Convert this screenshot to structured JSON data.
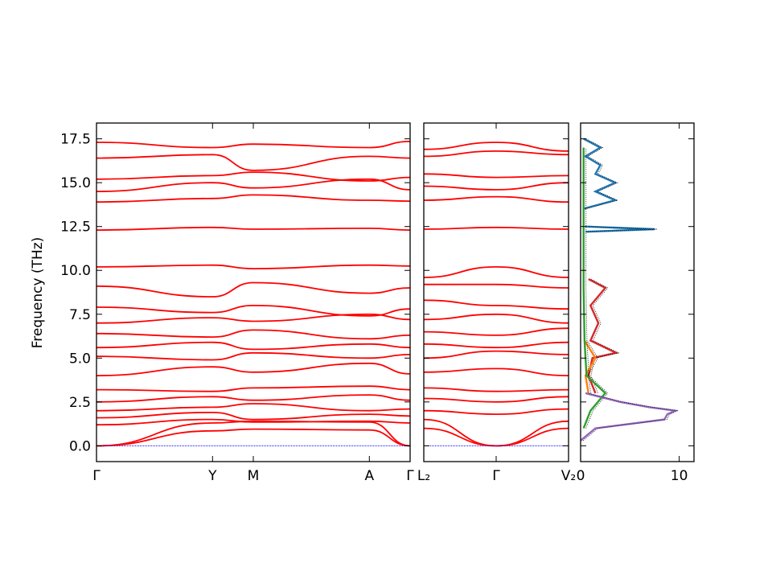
{
  "chart_data": [
    {
      "type": "line",
      "panel": "band-structure-main",
      "xlabel": "",
      "ylabel": "Frequency (THz)",
      "ylim": [
        -0.9,
        18.4
      ],
      "yticks": [
        "0.0",
        "2.5",
        "5.0",
        "7.5",
        "10.0",
        "12.5",
        "15.0",
        "17.5"
      ],
      "xtick_labels": [
        "Γ",
        "Y",
        "M",
        "A",
        "Γ"
      ],
      "x": [
        0,
        0.37,
        0.5,
        0.87,
        1.0
      ],
      "line_color": "#ff0000",
      "zero_line_color": "#0000ff",
      "grid": false,
      "series_note_count": 48,
      "representative_series": [
        {
          "values": [
            0.0,
            0.85,
            0.95,
            0.9,
            0.0
          ]
        },
        {
          "values": [
            0.0,
            1.3,
            1.4,
            1.35,
            0.0
          ]
        },
        {
          "values": [
            1.2,
            1.5,
            1.35,
            1.4,
            1.3
          ]
        },
        {
          "values": [
            1.6,
            1.9,
            1.5,
            1.8,
            1.7
          ]
        },
        {
          "values": [
            2.0,
            2.2,
            2.4,
            2.0,
            2.1
          ]
        },
        {
          "values": [
            2.5,
            2.8,
            2.6,
            2.9,
            2.6
          ]
        },
        {
          "values": [
            3.2,
            3.1,
            3.3,
            3.4,
            3.2
          ]
        },
        {
          "values": [
            4.0,
            4.5,
            4.2,
            4.7,
            4.1
          ]
        },
        {
          "values": [
            5.1,
            4.9,
            5.3,
            5.0,
            5.2
          ]
        },
        {
          "values": [
            5.6,
            5.9,
            5.5,
            5.8,
            5.6
          ]
        },
        {
          "values": [
            6.4,
            6.2,
            6.6,
            6.1,
            6.3
          ]
        },
        {
          "values": [
            7.0,
            7.3,
            7.1,
            7.5,
            7.2
          ]
        },
        {
          "values": [
            7.9,
            7.6,
            8.0,
            7.4,
            7.8
          ]
        },
        {
          "values": [
            9.1,
            8.5,
            9.3,
            8.7,
            9.0
          ]
        },
        {
          "values": [
            10.2,
            10.3,
            10.1,
            10.3,
            10.25
          ]
        },
        {
          "values": [
            12.3,
            12.45,
            12.35,
            12.4,
            12.3
          ]
        },
        {
          "values": [
            13.9,
            14.1,
            14.3,
            14.0,
            13.95
          ]
        },
        {
          "values": [
            14.5,
            15.0,
            14.7,
            15.2,
            14.6
          ]
        },
        {
          "values": [
            15.2,
            15.4,
            15.6,
            15.1,
            15.3
          ]
        },
        {
          "values": [
            16.4,
            16.6,
            15.7,
            16.5,
            16.4
          ]
        },
        {
          "values": [
            17.3,
            17.0,
            17.2,
            17.0,
            17.35
          ]
        }
      ]
    },
    {
      "type": "line",
      "panel": "band-structure-secondary",
      "xtick_labels": [
        "L₂",
        "Γ",
        "V₂"
      ],
      "x": [
        0,
        0.5,
        1.0
      ],
      "ylim": [
        -0.9,
        18.4
      ],
      "line_color": "#ff0000",
      "representative_series": [
        {
          "values": [
            1.0,
            0.0,
            1.0
          ]
        },
        {
          "values": [
            1.5,
            0.0,
            1.4
          ]
        },
        {
          "values": [
            2.0,
            1.8,
            2.1
          ]
        },
        {
          "values": [
            2.7,
            2.5,
            2.8
          ]
        },
        {
          "values": [
            3.3,
            3.1,
            3.2
          ]
        },
        {
          "values": [
            4.2,
            4.4,
            4.0
          ]
        },
        {
          "values": [
            5.0,
            5.4,
            5.2
          ]
        },
        {
          "values": [
            5.8,
            5.6,
            5.9
          ]
        },
        {
          "values": [
            6.5,
            6.3,
            6.7
          ]
        },
        {
          "values": [
            7.2,
            7.5,
            7.0
          ]
        },
        {
          "values": [
            8.3,
            8.0,
            7.8
          ]
        },
        {
          "values": [
            9.2,
            9.2,
            9.0
          ]
        },
        {
          "values": [
            9.6,
            10.2,
            9.6
          ]
        },
        {
          "values": [
            12.35,
            12.45,
            12.35
          ]
        },
        {
          "values": [
            14.0,
            14.2,
            13.9
          ]
        },
        {
          "values": [
            14.8,
            14.6,
            15.0
          ]
        },
        {
          "values": [
            15.5,
            15.3,
            15.4
          ]
        },
        {
          "values": [
            16.5,
            16.8,
            16.6
          ]
        },
        {
          "values": [
            16.9,
            17.3,
            16.8
          ]
        }
      ]
    },
    {
      "type": "line",
      "panel": "dos",
      "xticks": [
        "0",
        "10"
      ],
      "xlim": [
        0,
        11.5
      ],
      "ylim": [
        -0.9,
        18.4
      ],
      "total_color": "#000000",
      "series": [
        {
          "color": "#1f77b4",
          "y": [
            13.5,
            14.0,
            14.5,
            15.0,
            15.5,
            16.0,
            16.5,
            17.0,
            17.5
          ],
          "values": [
            0.2,
            3.5,
            1.5,
            3.5,
            1.5,
            2.0,
            0.5,
            2.0,
            0.3
          ]
        },
        {
          "color": "#1f77b4",
          "y": [
            12.2,
            12.35,
            12.5
          ],
          "values": [
            0.5,
            7.5,
            0.5
          ]
        },
        {
          "color": "#d62728",
          "y": [
            9.5,
            9.0,
            8.0,
            7.0,
            6.0,
            5.3,
            5.0,
            4.0,
            3.0
          ],
          "values": [
            0.8,
            2.5,
            1.0,
            1.8,
            1.0,
            3.6,
            1.2,
            0.8,
            1.5
          ]
        },
        {
          "color": "#ff7f0e",
          "y": [
            3.0,
            4.0,
            5.0,
            6.0
          ],
          "values": [
            0.8,
            0.5,
            1.5,
            0.4
          ]
        },
        {
          "color": "#2ca02c",
          "y": [
            1.0,
            2.0,
            3.0,
            4.0,
            5.0,
            6.0,
            9.0,
            17.0
          ],
          "values": [
            0.3,
            1.0,
            2.5,
            0.6,
            0.5,
            0.4,
            0.3,
            0.3
          ]
        },
        {
          "color": "#9467bd",
          "y": [
            0.3,
            1.0,
            1.5,
            1.8,
            2.0,
            2.2,
            2.5,
            3.0
          ],
          "values": [
            0.0,
            1.5,
            8.5,
            8.8,
            9.6,
            7.0,
            4.0,
            0.5
          ]
        }
      ]
    }
  ]
}
